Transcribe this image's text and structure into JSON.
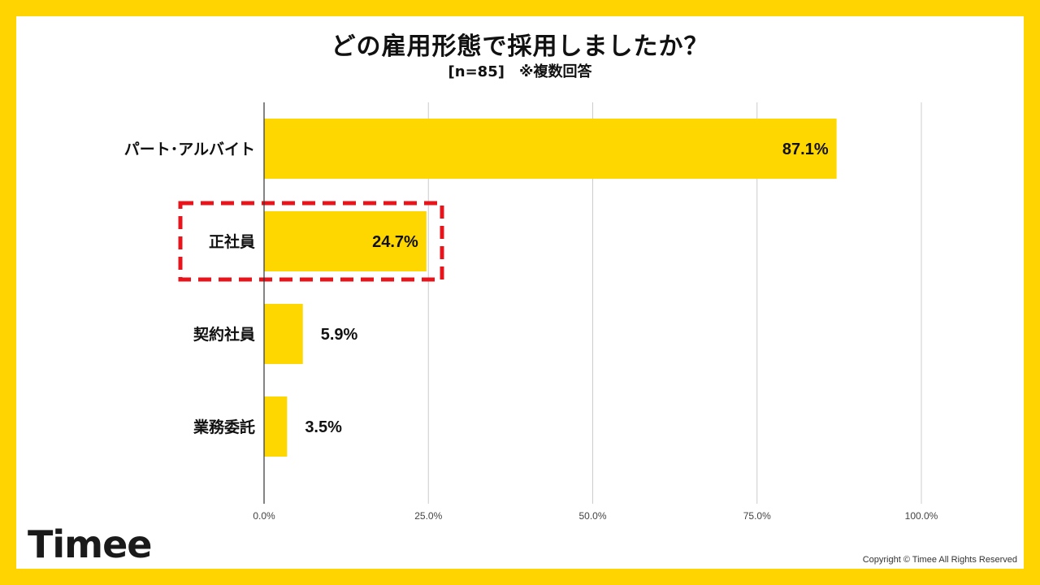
{
  "title": "どの雇用形態で採用しましたか？",
  "subtitle": "[n=85]　※複数回答",
  "brand": {
    "logo_text": "Timee",
    "copyright": "Copyright © Timee All Rights Reserved",
    "accent": "#FFD400",
    "bar_color": "#FFD700",
    "highlight_color": "#E8141B"
  },
  "chart_data": {
    "type": "bar",
    "orientation": "horizontal",
    "categories": [
      "パート･アルバイト",
      "正社員",
      "契約社員",
      "業務委託"
    ],
    "values": [
      87.1,
      24.7,
      5.9,
      3.5
    ],
    "value_labels": [
      "87.1%",
      "24.7%",
      "5.9%",
      "3.5%"
    ],
    "xlim": [
      0,
      100
    ],
    "xticks": [
      0,
      25,
      50,
      75,
      100
    ],
    "xtick_labels": [
      "0.0%",
      "25.0%",
      "50.0%",
      "75.0%",
      "100.0%"
    ],
    "grid": true,
    "highlighted_category": "正社員",
    "title": "どの雇用形態で採用しましたか？",
    "subtitle": "[n=85]　※複数回答",
    "xlabel": "",
    "ylabel": ""
  }
}
